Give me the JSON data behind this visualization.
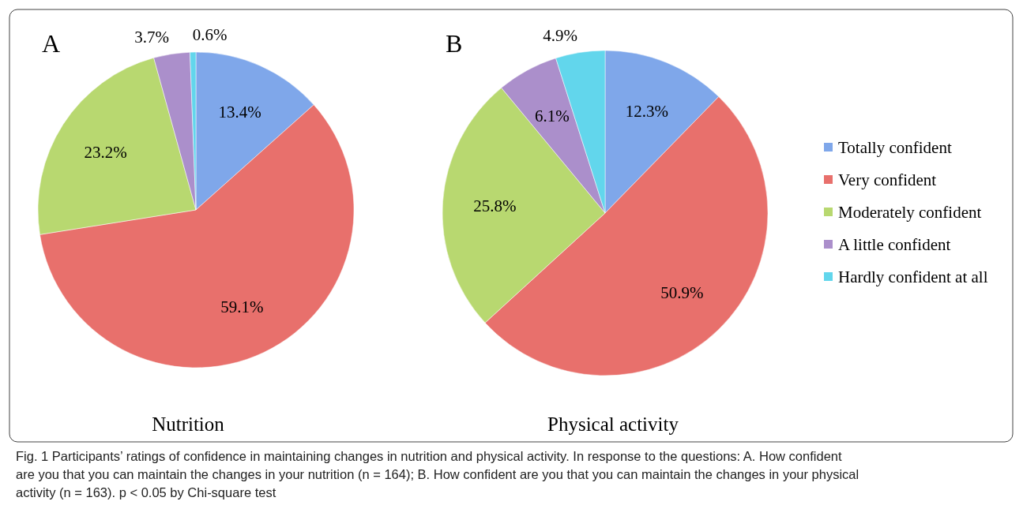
{
  "chart_data": [
    {
      "type": "pie",
      "title": "A",
      "xlabel": "Nutrition",
      "categories": [
        null,
        null,
        null,
        null,
        null
      ],
      "values": [
        13.4,
        59.1,
        23.2,
        3.7,
        0.6
      ],
      "value_labels": [
        "13.4%",
        "59.1%",
        "23.2%",
        "3.7%",
        "0.6%"
      ],
      "colors": [
        "#7fa7ea",
        "#e8706c",
        "#b8d870",
        "#ab8fcb",
        "#62d6ec"
      ],
      "annotations": [
        "Fig. 1 Participants’ ratings of confidence in maintaining changes in nutrition and physical activity. In response to the questions: A. How confident are you that you can maintain the changes in your nutrition (n = 164); B. How confident are you that you can maintain the changes in your physical activity (n = 163). p < 0.05 by Chi-square test"
      ]
    },
    {
      "type": "pie",
      "title": "B",
      "xlabel": "Physical activity",
      "categories": [
        "Totally confident",
        "Very confident",
        "Moderately confident",
        "A little confident",
        "Hardly confident at all"
      ],
      "values": [
        12.3,
        50.9,
        25.8,
        6.1,
        4.9
      ],
      "value_labels": [
        "12.3%",
        "50.9%",
        "25.8%",
        "6.1%",
        "4.9%"
      ],
      "colors": [
        "#7fa7ea",
        "#e8706c",
        "#b8d870",
        "#ab8fcb",
        "#62d6ec"
      ],
      "legend": "right"
    }
  ]
}
